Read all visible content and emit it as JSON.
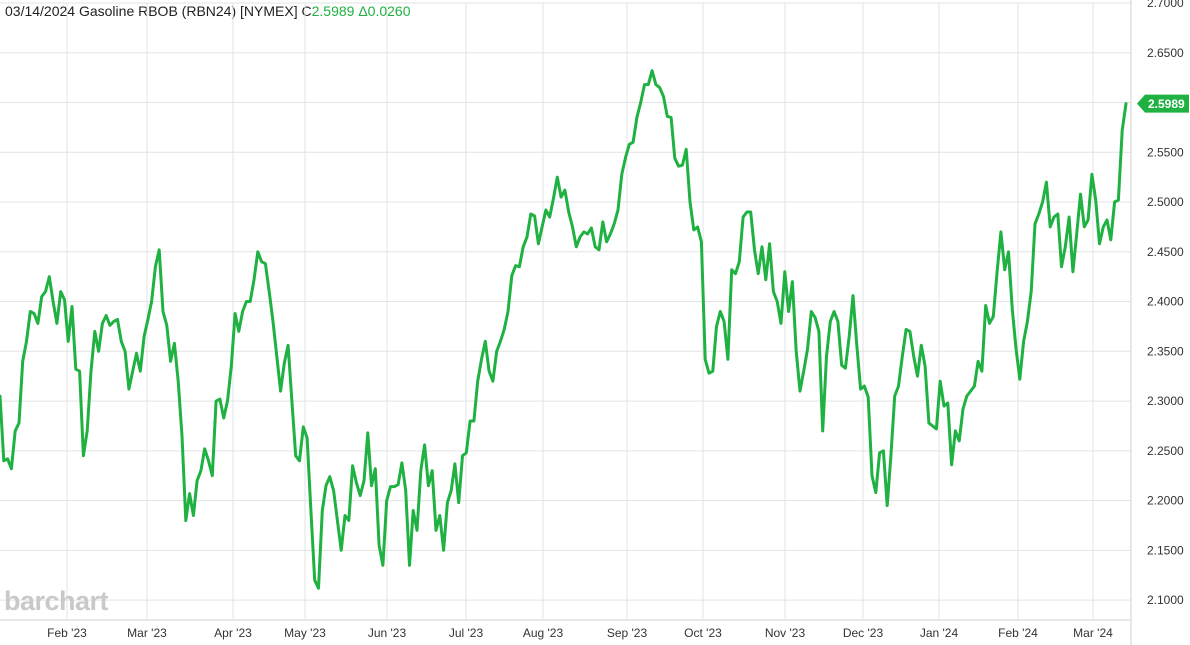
{
  "header": {
    "date": "03/14/2024",
    "instrument": "Gasoline RBOB (RBN24) [NYMEX]",
    "close_prefix": "C",
    "close_value": "2.5989",
    "change": "Δ0.0260"
  },
  "logo": {
    "text": "barchart"
  },
  "last_price_label": "2.5989",
  "colors": {
    "line": "#1fb141",
    "grid": "#e3e3e3",
    "text": "#333333",
    "accent": "#1fb141",
    "logo": "#c9c9c9"
  },
  "chart_data": {
    "type": "line",
    "title": "03/14/2024 Gasoline RBOB (RBN24) [NYMEX]",
    "xlabel": "",
    "ylabel": "",
    "ylim": [
      2.08,
      2.7
    ],
    "y_ticks": [
      "2.1000",
      "2.1500",
      "2.2000",
      "2.2500",
      "2.3000",
      "2.3500",
      "2.4000",
      "2.4500",
      "2.5000",
      "2.5500",
      "2.6000",
      "2.6500",
      "2.7000"
    ],
    "x_ticks": [
      "Feb '23",
      "Mar '23",
      "Apr '23",
      "May '23",
      "Jun '23",
      "Jul '23",
      "Aug '23",
      "Sep '23",
      "Oct '23",
      "Nov '23",
      "Dec '23",
      "Jan '24",
      "Feb '24",
      "Mar '24"
    ],
    "grid": true,
    "legend": "none",
    "last_value": 2.5989,
    "series": [
      {
        "values": [
          2.305,
          2.24,
          2.242,
          2.232,
          2.27,
          2.278,
          2.34,
          2.36,
          2.39,
          2.388,
          2.378,
          2.405,
          2.41,
          2.425,
          2.4,
          2.378,
          2.41,
          2.402,
          2.36,
          2.395,
          2.332,
          2.33,
          2.245,
          2.27,
          2.33,
          2.37,
          2.35,
          2.378,
          2.386,
          2.376,
          2.38,
          2.382,
          2.36,
          2.35,
          2.312,
          2.33,
          2.348,
          2.33,
          2.365,
          2.382,
          2.4,
          2.435,
          2.452,
          2.39,
          2.376,
          2.34,
          2.358,
          2.32,
          2.265,
          2.18,
          2.207,
          2.185,
          2.22,
          2.23,
          2.252,
          2.24,
          2.225,
          2.3,
          2.302,
          2.283,
          2.3,
          2.335,
          2.388,
          2.37,
          2.39,
          2.4,
          2.4,
          2.422,
          2.45,
          2.44,
          2.438,
          2.41,
          2.38,
          2.345,
          2.31,
          2.338,
          2.356,
          2.3,
          2.245,
          2.24,
          2.274,
          2.263,
          2.19,
          2.12,
          2.112,
          2.19,
          2.215,
          2.224,
          2.21,
          2.18,
          2.15,
          2.185,
          2.18,
          2.235,
          2.218,
          2.205,
          2.22,
          2.268,
          2.215,
          2.232,
          2.155,
          2.135,
          2.2,
          2.214,
          2.214,
          2.216,
          2.238,
          2.21,
          2.135,
          2.19,
          2.17,
          2.23,
          2.256,
          2.215,
          2.23,
          2.17,
          2.185,
          2.15,
          2.198,
          2.21,
          2.237,
          2.198,
          2.245,
          2.248,
          2.28,
          2.28,
          2.32,
          2.342,
          2.36,
          2.33,
          2.32,
          2.35,
          2.36,
          2.372,
          2.39,
          2.426,
          2.436,
          2.435,
          2.455,
          2.465,
          2.488,
          2.486,
          2.458,
          2.475,
          2.492,
          2.485,
          2.504,
          2.525,
          2.505,
          2.512,
          2.49,
          2.475,
          2.455,
          2.465,
          2.47,
          2.468,
          2.474,
          2.455,
          2.452,
          2.48,
          2.46,
          2.468,
          2.478,
          2.492,
          2.528,
          2.545,
          2.558,
          2.56,
          2.585,
          2.6,
          2.618,
          2.618,
          2.632,
          2.618,
          2.615,
          2.606,
          2.586,
          2.585,
          2.544,
          2.536,
          2.537,
          2.553,
          2.5,
          2.472,
          2.475,
          2.46,
          2.342,
          2.328,
          2.33,
          2.375,
          2.39,
          2.38,
          2.342,
          2.432,
          2.428,
          2.44,
          2.485,
          2.49,
          2.49,
          2.452,
          2.428,
          2.455,
          2.422,
          2.458,
          2.41,
          2.4,
          2.378,
          2.43,
          2.39,
          2.42,
          2.35,
          2.31,
          2.33,
          2.352,
          2.39,
          2.384,
          2.37,
          2.27,
          2.345,
          2.38,
          2.39,
          2.38,
          2.336,
          2.333,
          2.365,
          2.406,
          2.356,
          2.312,
          2.315,
          2.304,
          2.225,
          2.208,
          2.248,
          2.25,
          2.195,
          2.245,
          2.305,
          2.315,
          2.345,
          2.372,
          2.37,
          2.345,
          2.325,
          2.356,
          2.335,
          2.278,
          2.275,
          2.272,
          2.32,
          2.295,
          2.298,
          2.236,
          2.27,
          2.26,
          2.292,
          2.305,
          2.31,
          2.315,
          2.34,
          2.33,
          2.396,
          2.378,
          2.385,
          2.43,
          2.47,
          2.432,
          2.45,
          2.392,
          2.352,
          2.322,
          2.36,
          2.38,
          2.41,
          2.478,
          2.488,
          2.5,
          2.52,
          2.475,
          2.485,
          2.488,
          2.435,
          2.455,
          2.485,
          2.43,
          2.468,
          2.508,
          2.475,
          2.482,
          2.528,
          2.502,
          2.458,
          2.475,
          2.482,
          2.462,
          2.5,
          2.502,
          2.572,
          2.5989
        ]
      }
    ]
  }
}
